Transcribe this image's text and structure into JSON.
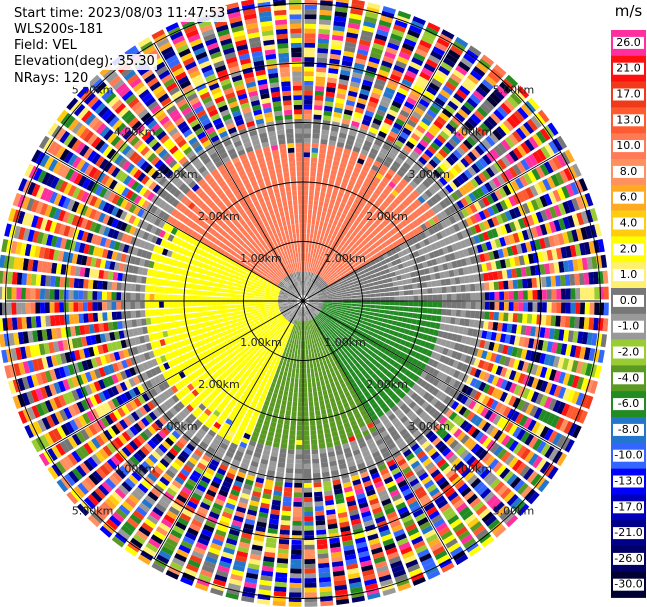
{
  "header": {
    "start_time": "Start time: 2023/08/03 11:47:53",
    "instrument": "WLS200s-181",
    "field": "Field: VEL",
    "elevation": "Elevation(deg): 35.30",
    "nrays": "NRays: 120"
  },
  "chart_data": {
    "type": "heatmap",
    "projection": "polar-ppi",
    "nrays": 120,
    "range_rings_km": [
      1.0,
      2.0,
      3.0,
      4.0,
      5.0
    ],
    "range_labels": [
      "1.00km",
      "2.00km",
      "3.00km",
      "4.00km",
      "5.00km"
    ],
    "colorbar": {
      "unit": "m/s",
      "ticks": [
        "26.0",
        "21.0",
        "17.0",
        "13.0",
        "10.0",
        "8.0",
        "6.0",
        "4.0",
        "2.0",
        "1.0",
        "0.0",
        "-1.0",
        "-2.0",
        "-4.0",
        "-6.0",
        "-8.0",
        "-10.0",
        "-13.0",
        "-17.0",
        "-21.0",
        "-26.0",
        "-30.0"
      ],
      "colors": [
        "#ff2fa0",
        "#ff1010",
        "#f03a1a",
        "#ff5a30",
        "#ff7a55",
        "#ff9060",
        "#ffaa20",
        "#ffcc10",
        "#ffff00",
        "#fff070",
        "#777777",
        "#999999",
        "#99cc33",
        "#5a9a22",
        "#228b22",
        "#2277cc",
        "#3366ff",
        "#0000ff",
        "#0000bb",
        "#000088",
        "#000066",
        "#000033"
      ]
    },
    "sectors": [
      {
        "az_start": 0,
        "az_end": 60,
        "r_km": [
          0.5,
          2.6
        ],
        "value": "10.0"
      },
      {
        "az_start": 300,
        "az_end": 360,
        "r_km": [
          0.5,
          2.6
        ],
        "value": "10.0"
      },
      {
        "az_start": 200,
        "az_end": 300,
        "r_km": [
          0.4,
          2.6
        ],
        "value": "2.0"
      },
      {
        "az_start": 30,
        "az_end": 90,
        "r_km": [
          0.3,
          1.5
        ],
        "value": "0.0"
      },
      {
        "az_start": 90,
        "az_end": 150,
        "r_km": [
          0.3,
          2.3
        ],
        "value": "-6.0"
      },
      {
        "az_start": 150,
        "az_end": 200,
        "r_km": [
          0.3,
          2.5
        ],
        "value": "-4.0"
      }
    ],
    "noise_start_km": 3.0,
    "max_range_km": 5.1
  }
}
